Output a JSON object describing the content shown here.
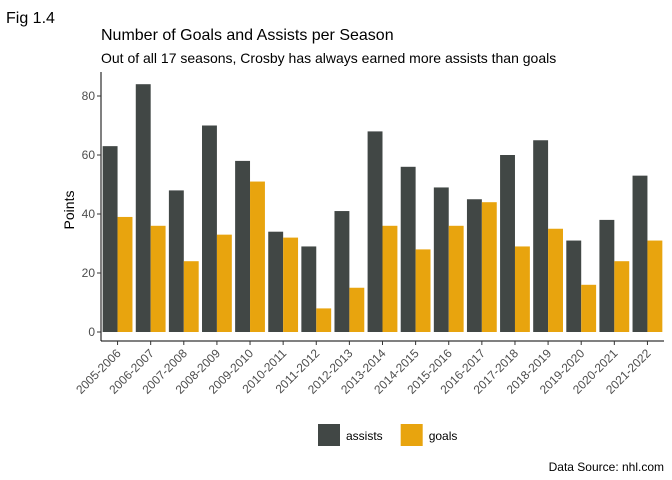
{
  "figure_label": "Fig 1.4",
  "caption": "Data Source: nhl.com",
  "chart_data": {
    "type": "bar",
    "title": "Number of Goals and Assists per Season",
    "subtitle": "Out of all 17 seasons, Crosby has always earned more assists than goals",
    "xlabel": "",
    "ylabel": "Points",
    "ylim": [
      0,
      88
    ],
    "yticks": [
      0,
      20,
      40,
      60,
      80
    ],
    "grid": false,
    "legend_position": "bottom",
    "categories": [
      "2005-2006",
      "2006-2007",
      "2007-2008",
      "2008-2009",
      "2009-2010",
      "2010-2011",
      "2011-2012",
      "2012-2013",
      "2013-2014",
      "2014-2015",
      "2015-2016",
      "2016-2017",
      "2017-2018",
      "2018-2019",
      "2019-2020",
      "2020-2021",
      "2021-2022"
    ],
    "series": [
      {
        "name": "assists",
        "color": "#414745",
        "values": [
          63,
          84,
          48,
          70,
          58,
          34,
          29,
          41,
          68,
          56,
          49,
          45,
          60,
          65,
          31,
          38,
          53
        ]
      },
      {
        "name": "goals",
        "color": "#E8A40E",
        "values": [
          39,
          36,
          24,
          33,
          51,
          32,
          8,
          15,
          36,
          28,
          36,
          44,
          29,
          35,
          16,
          24,
          31
        ]
      }
    ]
  }
}
